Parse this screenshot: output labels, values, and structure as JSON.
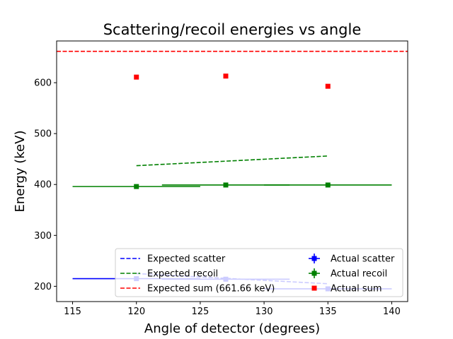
{
  "chart_data": {
    "type": "line",
    "title": "Scattering/recoil energies vs angle",
    "xlabel": "Angle of detector (degrees)",
    "ylabel": "Energy (keV)",
    "xlim": [
      113.75,
      141.25
    ],
    "ylim": [
      170,
      682
    ],
    "xticks": [
      115,
      120,
      125,
      130,
      135,
      140
    ],
    "yticks": [
      200,
      300,
      400,
      500,
      600
    ],
    "grid": false,
    "legend_position": "lower-right",
    "expected_sum_value": 661.66,
    "colors": {
      "scatter": "#0000ff",
      "recoil": "#008000",
      "sum": "#ff0000"
    },
    "series": [
      {
        "name": "Expected scatter",
        "style": "dashed",
        "color": "#0000ff",
        "x": [
          120,
          135
        ],
        "y": [
          225,
          205
        ]
      },
      {
        "name": "Expected recoil",
        "style": "dashed",
        "color": "#008000",
        "x": [
          120,
          135
        ],
        "y": [
          437,
          456
        ]
      },
      {
        "name": "Expected sum (661.66 keV)",
        "style": "hline",
        "color": "#ff0000",
        "y": 661.66
      },
      {
        "name": "Actual scatter",
        "style": "errorbar",
        "color": "#0000ff",
        "x": [
          120,
          127,
          135
        ],
        "y": [
          215,
          214,
          195
        ],
        "xerr": [
          5,
          5,
          5
        ]
      },
      {
        "name": "Actual recoil",
        "style": "errorbar",
        "color": "#008000",
        "x": [
          120,
          127,
          135
        ],
        "y": [
          396,
          399,
          399
        ],
        "xerr": [
          5,
          5,
          5
        ]
      },
      {
        "name": "Actual sum",
        "style": "marker",
        "color": "#ff0000",
        "x": [
          120,
          127,
          135
        ],
        "y": [
          611,
          613,
          593
        ]
      }
    ],
    "legend": {
      "left_column": [
        "Expected scatter",
        "Expected recoil",
        "Expected sum (661.66 keV)"
      ],
      "right_column": [
        "Actual scatter",
        "Actual recoil",
        "Actual sum"
      ]
    }
  }
}
